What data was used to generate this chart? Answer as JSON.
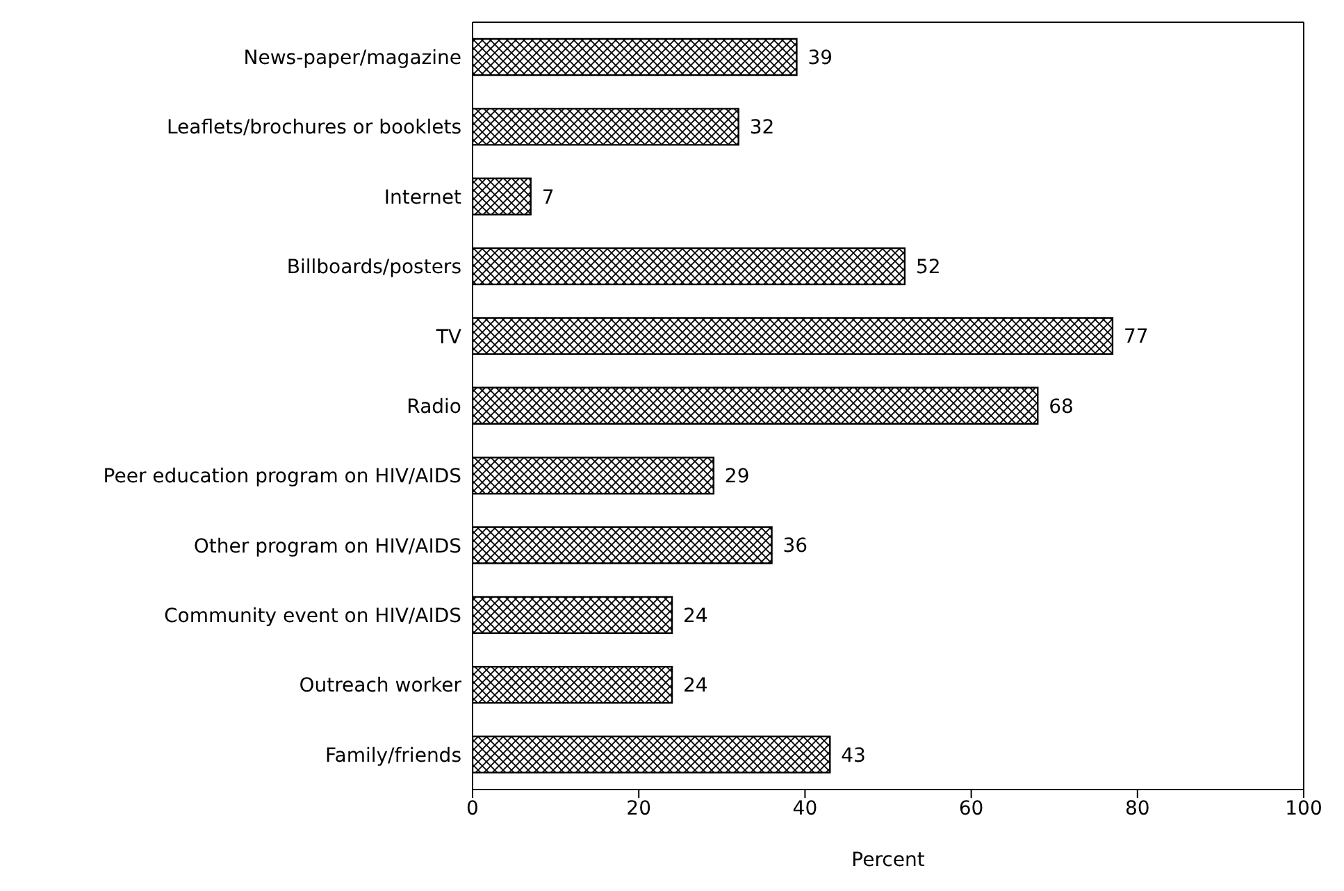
{
  "chart_data": {
    "type": "bar",
    "orientation": "horizontal",
    "xlabel": "Percent",
    "categories": [
      "News-paper/magazine",
      "Leaflets/brochures or booklets",
      "Internet",
      "Billboards/posters",
      "TV",
      "Radio",
      "Peer education program on HIV/AIDS",
      "Other program on HIV/AIDS",
      "Community event on HIV/AIDS",
      "Outreach worker",
      "Family/friends"
    ],
    "values": [
      39,
      32,
      7,
      52,
      77,
      68,
      29,
      36,
      24,
      24,
      43
    ],
    "color": "#000000",
    "xlim": [
      0,
      100
    ],
    "xticks": [
      0,
      20,
      40,
      60,
      80,
      100
    ],
    "data_labels": true,
    "grid": false
  }
}
